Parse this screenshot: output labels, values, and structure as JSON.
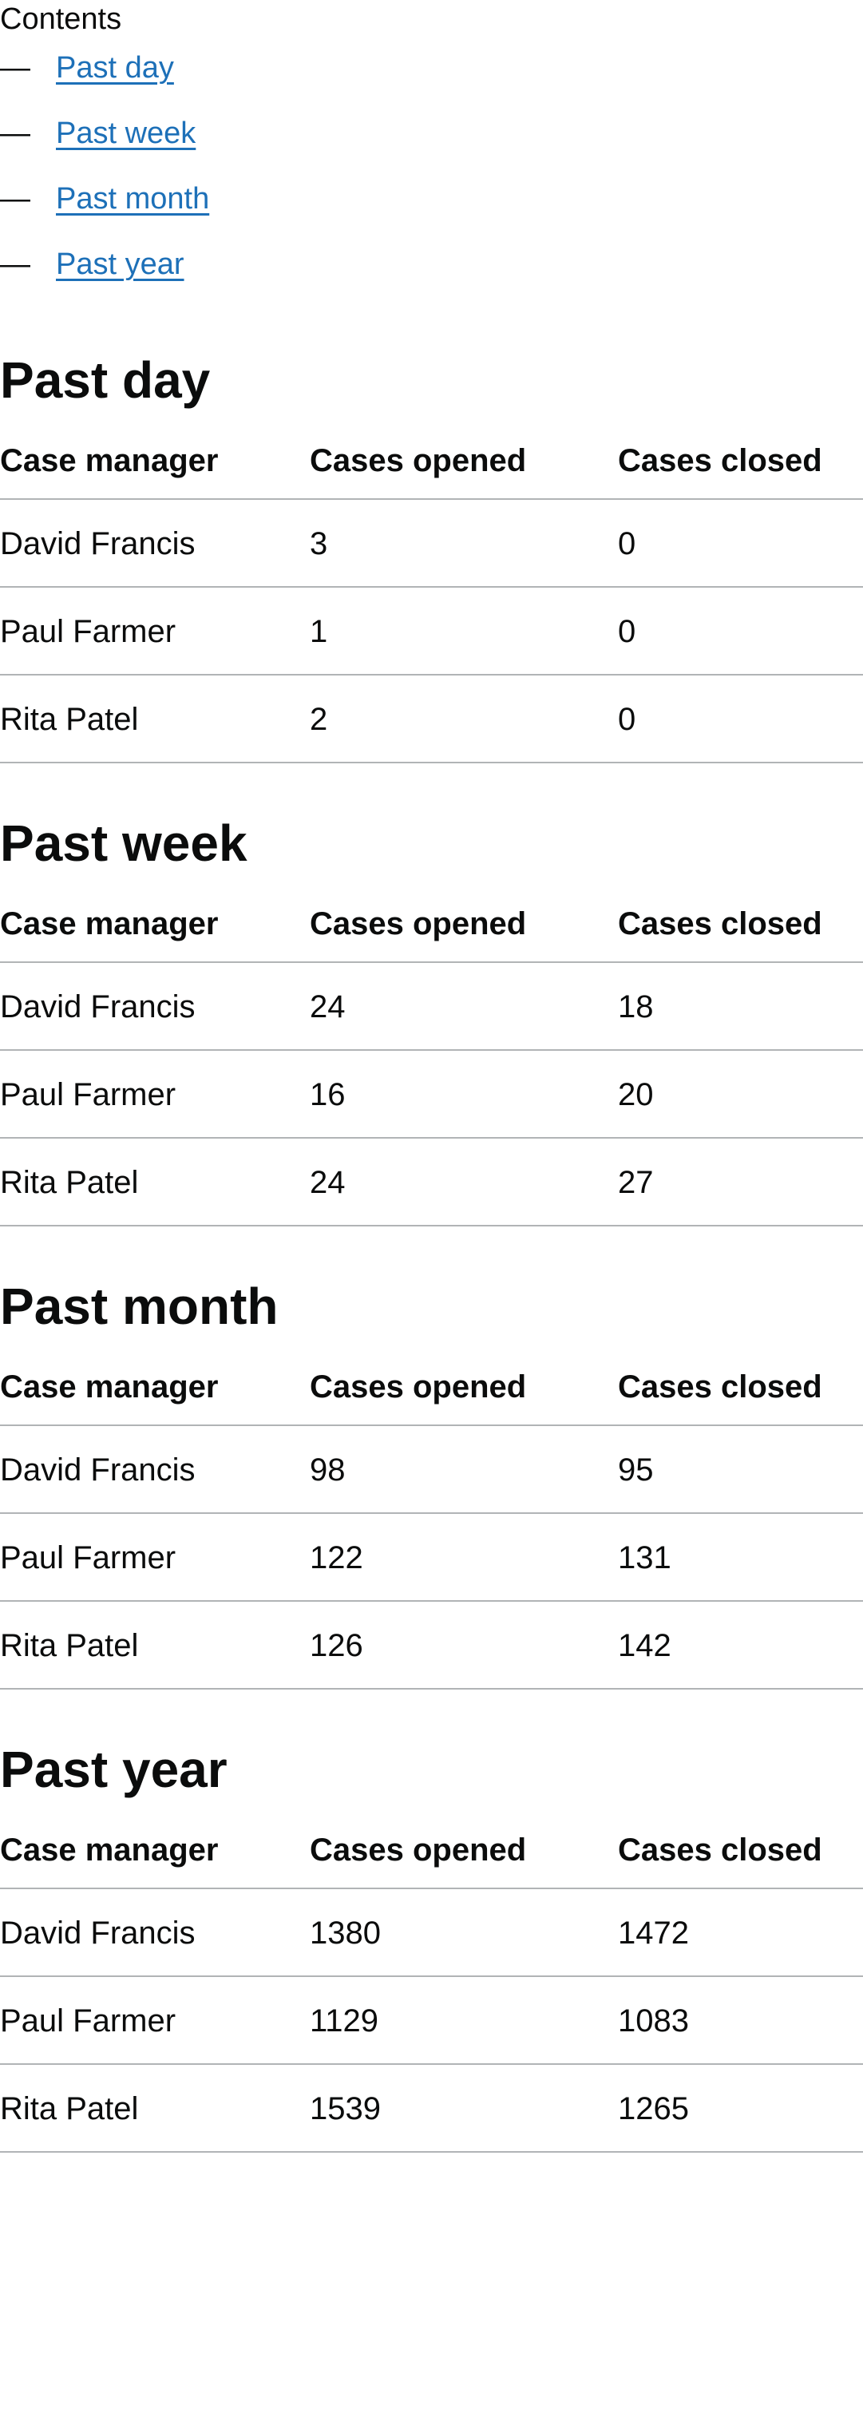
{
  "contents": {
    "title": "Contents",
    "items": [
      {
        "dash": "—",
        "label": "Past day"
      },
      {
        "dash": "—",
        "label": "Past week"
      },
      {
        "dash": "—",
        "label": "Past month"
      },
      {
        "dash": "—",
        "label": "Past year"
      }
    ]
  },
  "sections": [
    {
      "title": "Past day",
      "headers": [
        "Case manager",
        "Cases opened",
        "Cases closed"
      ],
      "rows": [
        [
          "David Francis",
          "3",
          "0"
        ],
        [
          "Paul Farmer",
          "1",
          "0"
        ],
        [
          "Rita Patel",
          "2",
          "0"
        ]
      ]
    },
    {
      "title": "Past week",
      "headers": [
        "Case manager",
        "Cases opened",
        "Cases closed"
      ],
      "rows": [
        [
          "David Francis",
          "24",
          "18"
        ],
        [
          "Paul Farmer",
          "16",
          "20"
        ],
        [
          "Rita Patel",
          "24",
          "27"
        ]
      ]
    },
    {
      "title": "Past month",
      "headers": [
        "Case manager",
        "Cases opened",
        "Cases closed"
      ],
      "rows": [
        [
          "David Francis",
          "98",
          "95"
        ],
        [
          "Paul Farmer",
          "122",
          "131"
        ],
        [
          "Rita Patel",
          "126",
          "142"
        ]
      ]
    },
    {
      "title": "Past year",
      "headers": [
        "Case manager",
        "Cases opened",
        "Cases closed"
      ],
      "rows": [
        [
          "David Francis",
          "1380",
          "1472"
        ],
        [
          "Paul Farmer",
          "1129",
          "1083"
        ],
        [
          "Rita Patel",
          "1539",
          "1265"
        ]
      ]
    }
  ]
}
